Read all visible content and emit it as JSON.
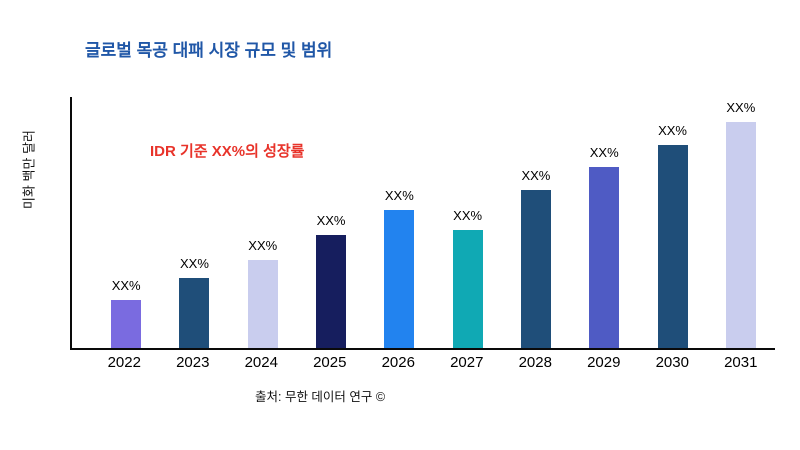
{
  "chart": {
    "title": "글로벌 목공 대패 시장 규모 및 범위",
    "ylabel": "미화 백만 달러",
    "annotation": "IDR 기준 XX%의 성장률",
    "source": "출처: 무한 데이터 연구 ©"
  },
  "palette": {
    "title": "#2057a7",
    "annotation": "#e8332a",
    "axis": "#0a0a0a",
    "bar_label": "#000000"
  },
  "chart_data": {
    "type": "bar",
    "title": "글로벌 목공 대패 시장 규모 및 범위",
    "xlabel": "",
    "ylabel": "미화 백만 달러",
    "categories": [
      "2022",
      "2023",
      "2024",
      "2025",
      "2026",
      "2027",
      "2028",
      "2029",
      "2030",
      "2031"
    ],
    "values": [
      19,
      28,
      35,
      45,
      55,
      47,
      63,
      72,
      81,
      90
    ],
    "bar_labels": [
      "XX%",
      "XX%",
      "XX%",
      "XX%",
      "XX%",
      "XX%",
      "XX%",
      "XX%",
      "XX%",
      "XX%"
    ],
    "colors": [
      "#7a6be0",
      "#1f4e79",
      "#c9cdee",
      "#161e5e",
      "#2283ef",
      "#10a9b4",
      "#1f4e79",
      "#4f5bc4",
      "#1f4e79",
      "#c9cdee"
    ],
    "ylim": [
      0,
      100
    ],
    "grid": false,
    "legend": null,
    "annotation": "IDR 기준 XX%의 성장률",
    "source": "출처: 무한 데이터 연구 ©"
  }
}
